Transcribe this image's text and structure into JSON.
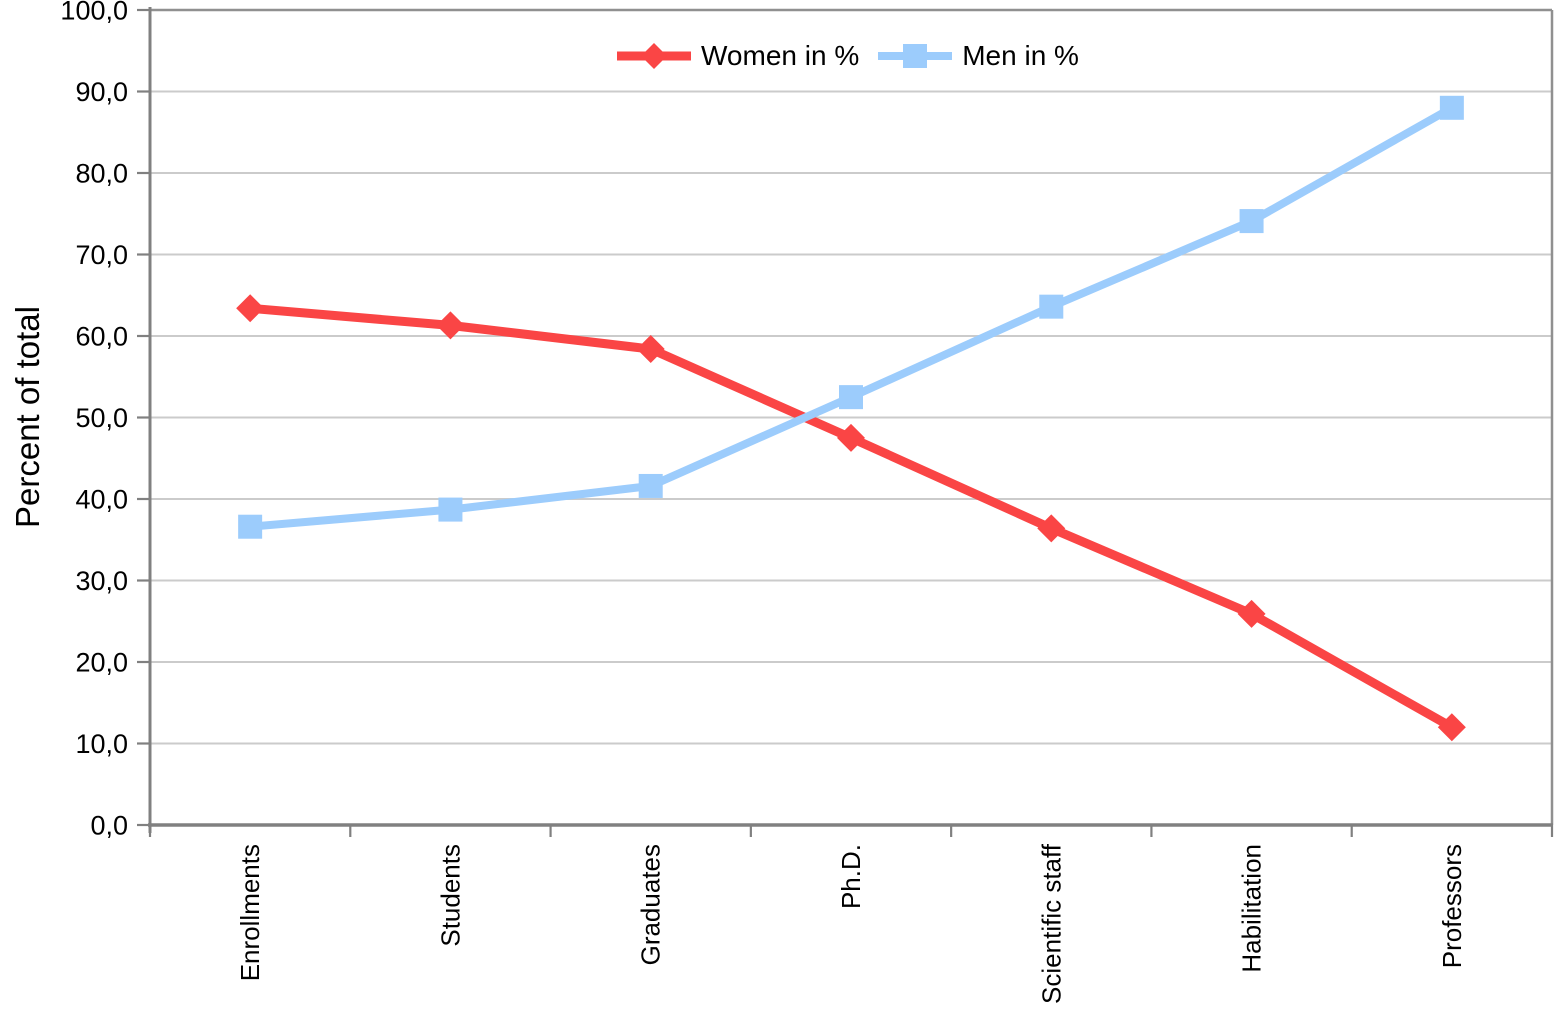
{
  "chart_data": {
    "type": "line",
    "title": "",
    "xlabel": "",
    "ylabel": "Percent of total",
    "ylim": [
      0,
      100
    ],
    "ytick_step": 10,
    "ytick_labels": [
      "0,0",
      "10,0",
      "20,0",
      "30,0",
      "40,0",
      "50,0",
      "60,0",
      "70,0",
      "80,0",
      "90,0",
      "100,0"
    ],
    "decimal_separator": ",",
    "grid": "horizontal-only",
    "plot_border": true,
    "legend_position": "top-center",
    "categories": [
      "Enrollments",
      "Students",
      "Graduates",
      "Ph.D.",
      "Scientific staff",
      "Habilitation",
      "Professors"
    ],
    "series": [
      {
        "name": "Women in %",
        "marker": "diamond",
        "color": "#FA4545",
        "values": [
          63.4,
          61.3,
          58.4,
          47.5,
          36.4,
          25.9,
          12.0
        ]
      },
      {
        "name": "Men in %",
        "marker": "square",
        "color": "#9CCCFC",
        "values": [
          36.6,
          38.7,
          41.6,
          52.5,
          63.6,
          74.1,
          88.0
        ]
      }
    ],
    "colors": {
      "axis": "#808080",
      "border": "#909090",
      "gridline": "#CBCBCB",
      "text": "#000000",
      "background": "#FFFFFF"
    }
  }
}
